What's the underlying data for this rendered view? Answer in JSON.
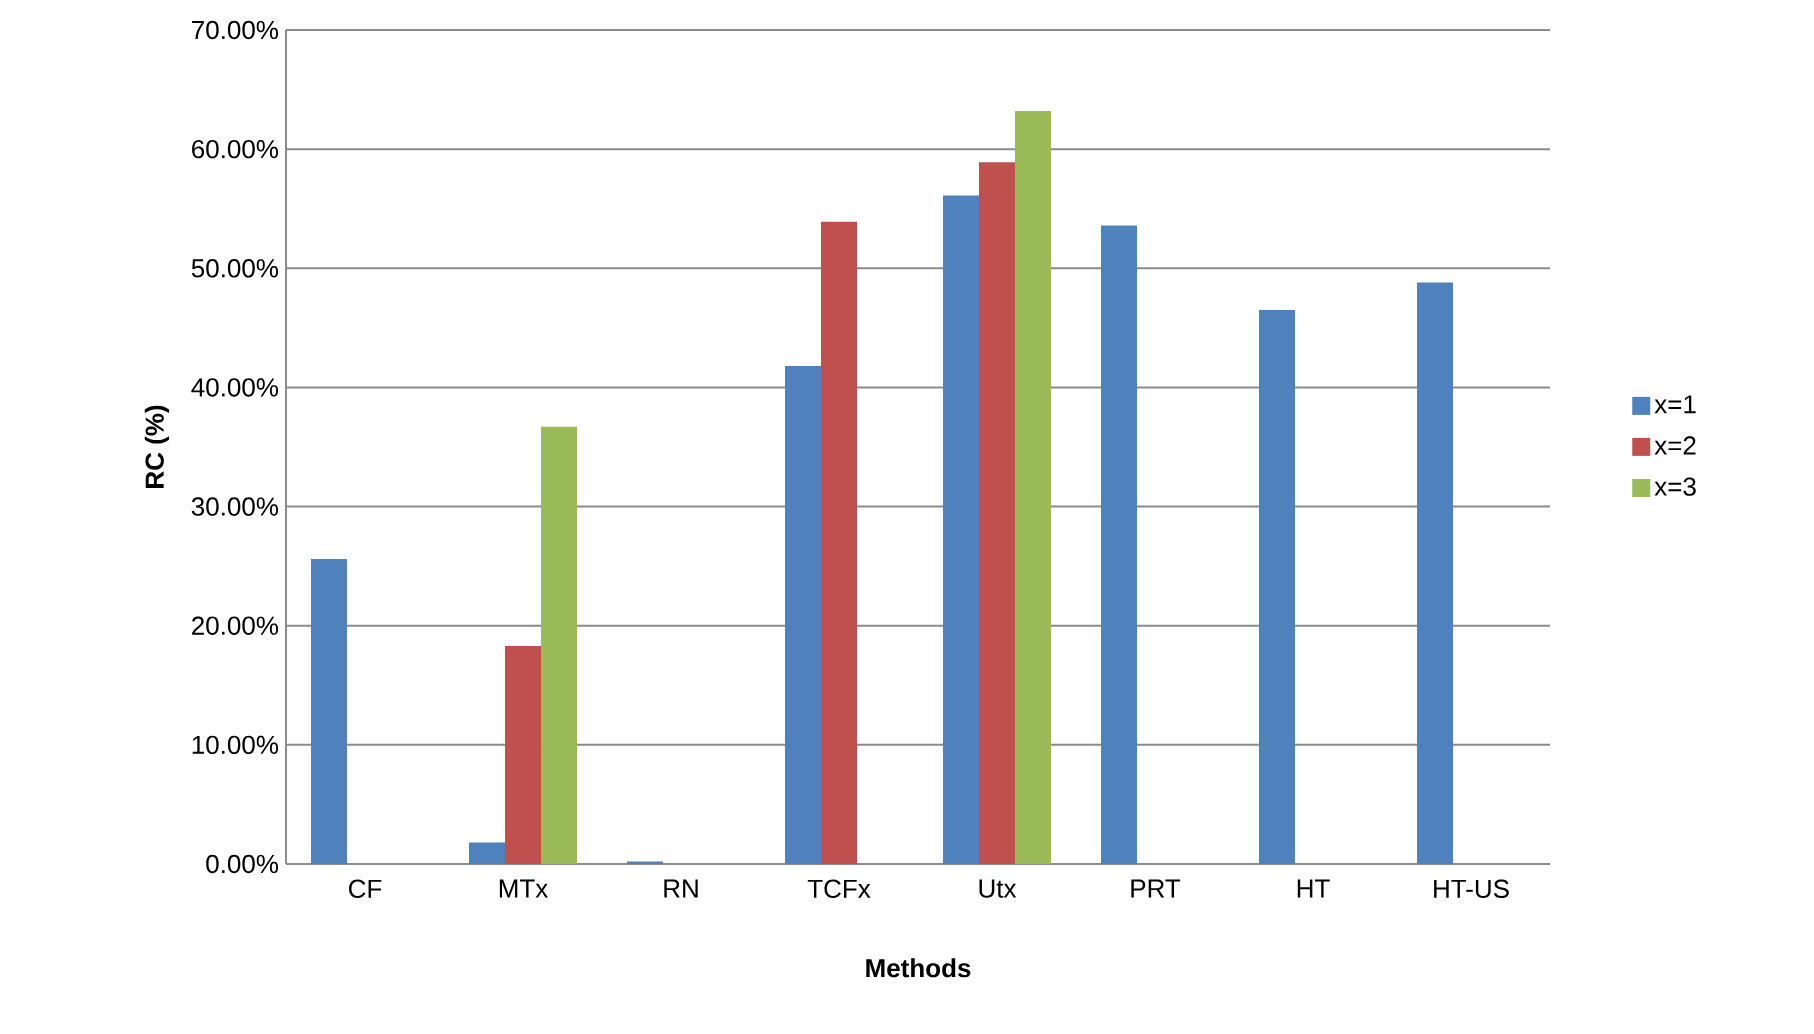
{
  "chart_data": {
    "type": "bar",
    "xlabel": "Methods",
    "ylabel": "RC (%)",
    "categories": [
      "CF",
      "MTx",
      "RN",
      "TCFx",
      "Utx",
      "PRT",
      "HT",
      "HT-US"
    ],
    "series": [
      {
        "name": "x=1",
        "color": "#4f81bd",
        "values": [
          25.6,
          1.8,
          0.2,
          41.8,
          56.1,
          53.6,
          46.5,
          48.8
        ]
      },
      {
        "name": "x=2",
        "color": "#c0504d",
        "values": [
          null,
          18.3,
          null,
          53.9,
          58.9,
          null,
          null,
          null
        ]
      },
      {
        "name": "x=3",
        "color": "#9bbb59",
        "values": [
          null,
          36.7,
          null,
          null,
          63.2,
          null,
          null,
          null
        ]
      }
    ],
    "ylim": [
      0,
      70
    ],
    "yticks": [
      {
        "value": 0,
        "label": "0.00%"
      },
      {
        "value": 10,
        "label": "10.00%"
      },
      {
        "value": 20,
        "label": "20.00%"
      },
      {
        "value": 30,
        "label": "30.00%"
      },
      {
        "value": 40,
        "label": "40.00%"
      },
      {
        "value": 50,
        "label": "50.00%"
      },
      {
        "value": 60,
        "label": "60.00%"
      },
      {
        "value": 70,
        "label": "70.00%"
      }
    ],
    "grid": "y",
    "legend": "right"
  }
}
